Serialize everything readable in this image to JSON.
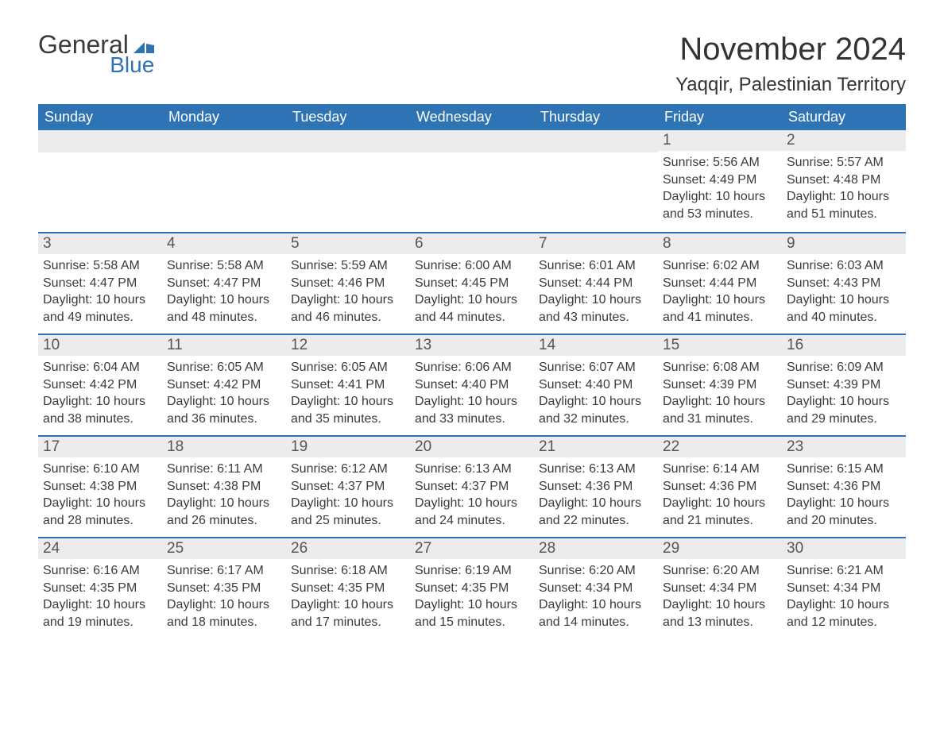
{
  "brand": {
    "general": "General",
    "blue": "Blue"
  },
  "title": "November 2024",
  "location": "Yaqqir, Palestinian Territory",
  "colors": {
    "header_bg": "#2e74b5",
    "header_text": "#ffffff",
    "daynum_bg": "#ececec",
    "text": "#3b3b3b",
    "border": "#2e74b5",
    "page_bg": "#ffffff"
  },
  "layout": {
    "type": "calendar",
    "columns": 7,
    "rows": 5,
    "title_fontsize": 40,
    "location_fontsize": 24,
    "weekday_fontsize": 18,
    "daynum_fontsize": 19,
    "body_fontsize": 16
  },
  "weekdays": [
    "Sunday",
    "Monday",
    "Tuesday",
    "Wednesday",
    "Thursday",
    "Friday",
    "Saturday"
  ],
  "weeks": [
    [
      null,
      null,
      null,
      null,
      null,
      {
        "day": "1",
        "sunrise": "Sunrise: 5:56 AM",
        "sunset": "Sunset: 4:49 PM",
        "daylight": "Daylight: 10 hours and 53 minutes."
      },
      {
        "day": "2",
        "sunrise": "Sunrise: 5:57 AM",
        "sunset": "Sunset: 4:48 PM",
        "daylight": "Daylight: 10 hours and 51 minutes."
      }
    ],
    [
      {
        "day": "3",
        "sunrise": "Sunrise: 5:58 AM",
        "sunset": "Sunset: 4:47 PM",
        "daylight": "Daylight: 10 hours and 49 minutes."
      },
      {
        "day": "4",
        "sunrise": "Sunrise: 5:58 AM",
        "sunset": "Sunset: 4:47 PM",
        "daylight": "Daylight: 10 hours and 48 minutes."
      },
      {
        "day": "5",
        "sunrise": "Sunrise: 5:59 AM",
        "sunset": "Sunset: 4:46 PM",
        "daylight": "Daylight: 10 hours and 46 minutes."
      },
      {
        "day": "6",
        "sunrise": "Sunrise: 6:00 AM",
        "sunset": "Sunset: 4:45 PM",
        "daylight": "Daylight: 10 hours and 44 minutes."
      },
      {
        "day": "7",
        "sunrise": "Sunrise: 6:01 AM",
        "sunset": "Sunset: 4:44 PM",
        "daylight": "Daylight: 10 hours and 43 minutes."
      },
      {
        "day": "8",
        "sunrise": "Sunrise: 6:02 AM",
        "sunset": "Sunset: 4:44 PM",
        "daylight": "Daylight: 10 hours and 41 minutes."
      },
      {
        "day": "9",
        "sunrise": "Sunrise: 6:03 AM",
        "sunset": "Sunset: 4:43 PM",
        "daylight": "Daylight: 10 hours and 40 minutes."
      }
    ],
    [
      {
        "day": "10",
        "sunrise": "Sunrise: 6:04 AM",
        "sunset": "Sunset: 4:42 PM",
        "daylight": "Daylight: 10 hours and 38 minutes."
      },
      {
        "day": "11",
        "sunrise": "Sunrise: 6:05 AM",
        "sunset": "Sunset: 4:42 PM",
        "daylight": "Daylight: 10 hours and 36 minutes."
      },
      {
        "day": "12",
        "sunrise": "Sunrise: 6:05 AM",
        "sunset": "Sunset: 4:41 PM",
        "daylight": "Daylight: 10 hours and 35 minutes."
      },
      {
        "day": "13",
        "sunrise": "Sunrise: 6:06 AM",
        "sunset": "Sunset: 4:40 PM",
        "daylight": "Daylight: 10 hours and 33 minutes."
      },
      {
        "day": "14",
        "sunrise": "Sunrise: 6:07 AM",
        "sunset": "Sunset: 4:40 PM",
        "daylight": "Daylight: 10 hours and 32 minutes."
      },
      {
        "day": "15",
        "sunrise": "Sunrise: 6:08 AM",
        "sunset": "Sunset: 4:39 PM",
        "daylight": "Daylight: 10 hours and 31 minutes."
      },
      {
        "day": "16",
        "sunrise": "Sunrise: 6:09 AM",
        "sunset": "Sunset: 4:39 PM",
        "daylight": "Daylight: 10 hours and 29 minutes."
      }
    ],
    [
      {
        "day": "17",
        "sunrise": "Sunrise: 6:10 AM",
        "sunset": "Sunset: 4:38 PM",
        "daylight": "Daylight: 10 hours and 28 minutes."
      },
      {
        "day": "18",
        "sunrise": "Sunrise: 6:11 AM",
        "sunset": "Sunset: 4:38 PM",
        "daylight": "Daylight: 10 hours and 26 minutes."
      },
      {
        "day": "19",
        "sunrise": "Sunrise: 6:12 AM",
        "sunset": "Sunset: 4:37 PM",
        "daylight": "Daylight: 10 hours and 25 minutes."
      },
      {
        "day": "20",
        "sunrise": "Sunrise: 6:13 AM",
        "sunset": "Sunset: 4:37 PM",
        "daylight": "Daylight: 10 hours and 24 minutes."
      },
      {
        "day": "21",
        "sunrise": "Sunrise: 6:13 AM",
        "sunset": "Sunset: 4:36 PM",
        "daylight": "Daylight: 10 hours and 22 minutes."
      },
      {
        "day": "22",
        "sunrise": "Sunrise: 6:14 AM",
        "sunset": "Sunset: 4:36 PM",
        "daylight": "Daylight: 10 hours and 21 minutes."
      },
      {
        "day": "23",
        "sunrise": "Sunrise: 6:15 AM",
        "sunset": "Sunset: 4:36 PM",
        "daylight": "Daylight: 10 hours and 20 minutes."
      }
    ],
    [
      {
        "day": "24",
        "sunrise": "Sunrise: 6:16 AM",
        "sunset": "Sunset: 4:35 PM",
        "daylight": "Daylight: 10 hours and 19 minutes."
      },
      {
        "day": "25",
        "sunrise": "Sunrise: 6:17 AM",
        "sunset": "Sunset: 4:35 PM",
        "daylight": "Daylight: 10 hours and 18 minutes."
      },
      {
        "day": "26",
        "sunrise": "Sunrise: 6:18 AM",
        "sunset": "Sunset: 4:35 PM",
        "daylight": "Daylight: 10 hours and 17 minutes."
      },
      {
        "day": "27",
        "sunrise": "Sunrise: 6:19 AM",
        "sunset": "Sunset: 4:35 PM",
        "daylight": "Daylight: 10 hours and 15 minutes."
      },
      {
        "day": "28",
        "sunrise": "Sunrise: 6:20 AM",
        "sunset": "Sunset: 4:34 PM",
        "daylight": "Daylight: 10 hours and 14 minutes."
      },
      {
        "day": "29",
        "sunrise": "Sunrise: 6:20 AM",
        "sunset": "Sunset: 4:34 PM",
        "daylight": "Daylight: 10 hours and 13 minutes."
      },
      {
        "day": "30",
        "sunrise": "Sunrise: 6:21 AM",
        "sunset": "Sunset: 4:34 PM",
        "daylight": "Daylight: 10 hours and 12 minutes."
      }
    ]
  ]
}
